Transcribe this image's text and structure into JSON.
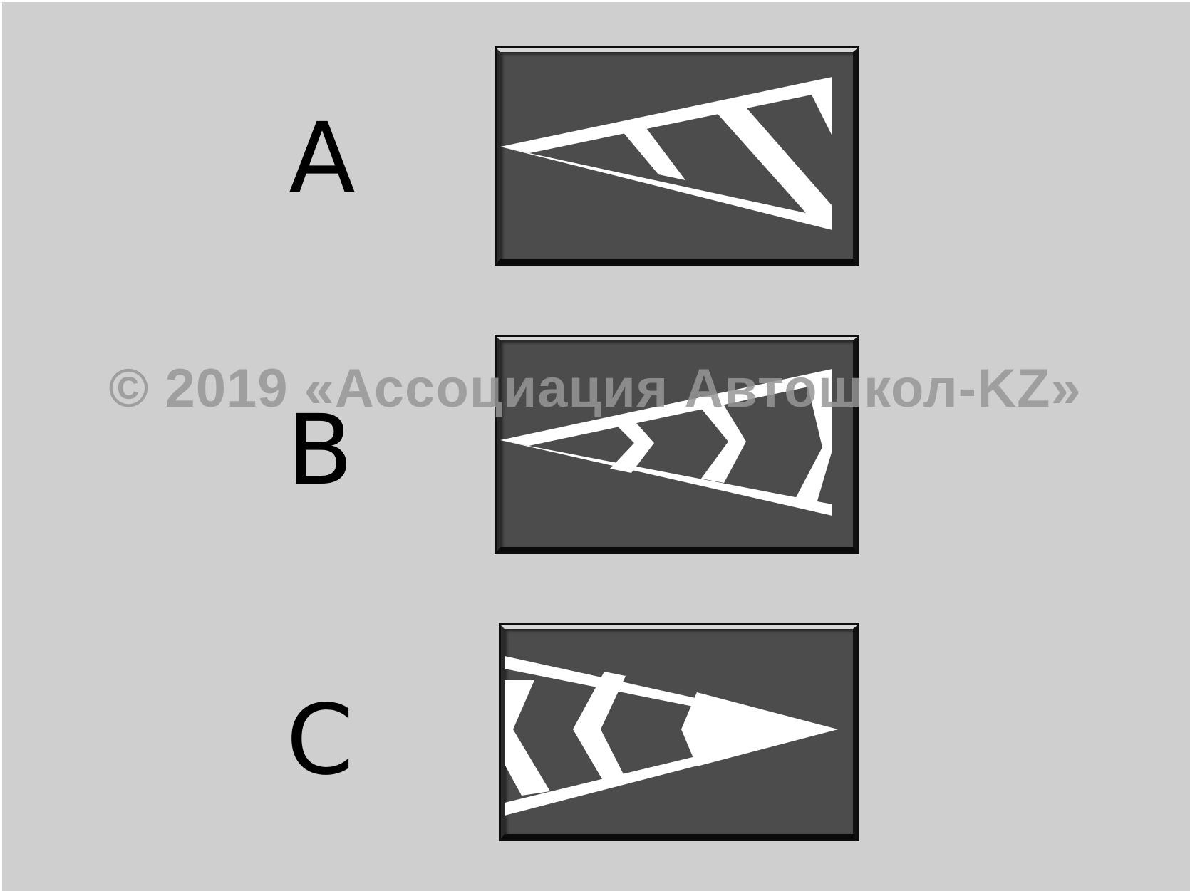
{
  "options": [
    {
      "label": "A",
      "marking": "triangle-diagonal-stripes"
    },
    {
      "label": "B",
      "marking": "triangle-chevrons-pointing-left"
    },
    {
      "label": "C",
      "marking": "triangle-chevrons-pointing-left-solid-tip"
    }
  ],
  "watermark": "© 2019 «Ассоциация Автошкол-KZ»",
  "colors": {
    "background": "#cfcfcf",
    "panel": "#4c4c4c",
    "marking": "#ffffff",
    "label": "#000000",
    "watermark": "#969696"
  }
}
